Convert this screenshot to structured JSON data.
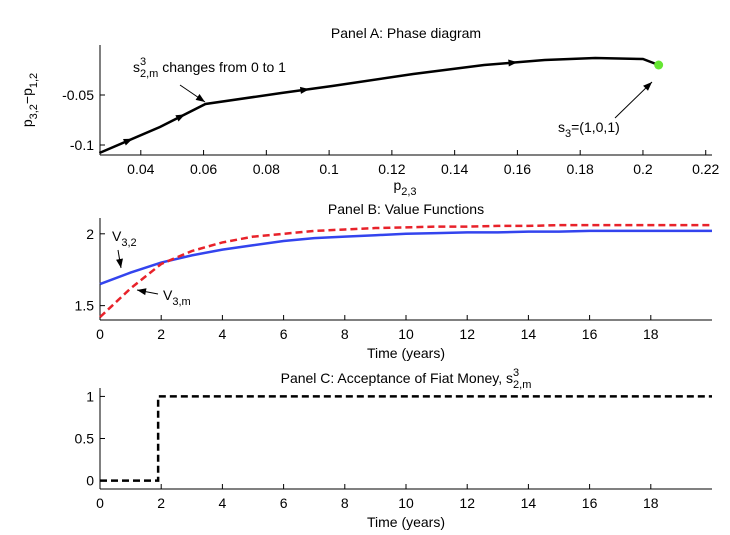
{
  "chart_data": [
    {
      "type": "line",
      "title": [
        {
          "text": "Panel A: Phase diagram"
        }
      ],
      "xlabel": [
        {
          "text": "p"
        },
        {
          "text": "2,3",
          "pos": "sub"
        }
      ],
      "ylabel": [
        {
          "text": "p"
        },
        {
          "text": "3,2",
          "pos": "sub"
        },
        {
          "text": "−p"
        },
        {
          "text": "1,2",
          "pos": "sub"
        }
      ],
      "x": [
        0.0268,
        0.0461,
        0.0606,
        0.0848,
        0.101,
        0.1268,
        0.1494,
        0.1687,
        0.1848,
        0.2,
        0.205
      ],
      "series": [
        {
          "color": "#000000",
          "dashed": false,
          "arrows": true,
          "end_marker_color": "#66e633",
          "values": [
            -0.108,
            -0.082,
            -0.059,
            -0.048,
            -0.041,
            -0.029,
            -0.02,
            -0.015,
            -0.013,
            -0.014,
            -0.02
          ]
        }
      ],
      "xlim": [
        0.027,
        0.222
      ],
      "ylim": [
        -0.11,
        0
      ],
      "xticks": [
        0.04,
        0.06,
        0.08,
        0.1,
        0.12,
        0.14,
        0.16,
        0.18,
        0.2,
        0.22
      ],
      "yticks": [
        -0.1,
        -0.05
      ],
      "annotations": [
        [
          {
            "text": "s"
          },
          {
            "text": "3",
            "pos": "sup"
          },
          {
            "text": "2,m",
            "pos": "sub"
          },
          {
            "text": " changes from 0 to 1"
          }
        ],
        [
          {
            "text": "s"
          },
          {
            "text": "3",
            "pos": "sub"
          },
          {
            "text": "=(1,0,1)"
          }
        ]
      ]
    },
    {
      "type": "line",
      "title": [
        {
          "text": "Panel B: Value Functions"
        }
      ],
      "xlabel": [
        {
          "text": "Time (years)"
        }
      ],
      "x": [
        0,
        1,
        2,
        3,
        4,
        5,
        6,
        7,
        8,
        9,
        10,
        11,
        12,
        13,
        14,
        15,
        16,
        17,
        18,
        19,
        20
      ],
      "series": [
        {
          "color": "#3344ee",
          "dashed": false,
          "values": [
            1.65,
            1.73,
            1.8,
            1.85,
            1.89,
            1.92,
            1.95,
            1.97,
            1.98,
            1.99,
            2.0,
            2.005,
            2.01,
            2.01,
            2.015,
            2.015,
            2.02,
            2.02,
            2.02,
            2.02,
            2.02
          ]
        },
        {
          "color": "#e8222a",
          "dashed": true,
          "values": [
            1.42,
            1.62,
            1.79,
            1.88,
            1.94,
            1.98,
            2.0,
            2.02,
            2.03,
            2.04,
            2.045,
            2.05,
            2.05,
            2.055,
            2.055,
            2.06,
            2.06,
            2.06,
            2.06,
            2.06,
            2.06
          ]
        }
      ],
      "xlim": [
        0,
        20
      ],
      "ylim": [
        1.4,
        2.11
      ],
      "xticks": [
        0,
        2,
        4,
        6,
        8,
        10,
        12,
        14,
        16,
        18
      ],
      "yticks": [
        1.5,
        2
      ],
      "annotations": [
        [
          {
            "text": "V"
          },
          {
            "text": "3,2",
            "pos": "sub"
          }
        ],
        [
          {
            "text": "V"
          },
          {
            "text": "3,m",
            "pos": "sub"
          }
        ]
      ]
    },
    {
      "type": "line",
      "title": [
        {
          "text": "Panel C: Acceptance of Fiat Money, s"
        },
        {
          "text": "3",
          "pos": "sup"
        },
        {
          "text": "2,m",
          "pos": "sub"
        }
      ],
      "xlabel": [
        {
          "text": "Time (years)"
        }
      ],
      "x": [
        0,
        1.9,
        1.9,
        20
      ],
      "series": [
        {
          "color": "#000000",
          "dashed": true,
          "values": [
            0,
            0,
            1,
            1
          ]
        }
      ],
      "xlim": [
        0,
        20
      ],
      "ylim": [
        -0.1,
        1.1
      ],
      "xticks": [
        0,
        2,
        4,
        6,
        8,
        10,
        12,
        14,
        16,
        18
      ],
      "yticks": [
        0,
        0.5,
        1
      ],
      "annotations": []
    }
  ]
}
